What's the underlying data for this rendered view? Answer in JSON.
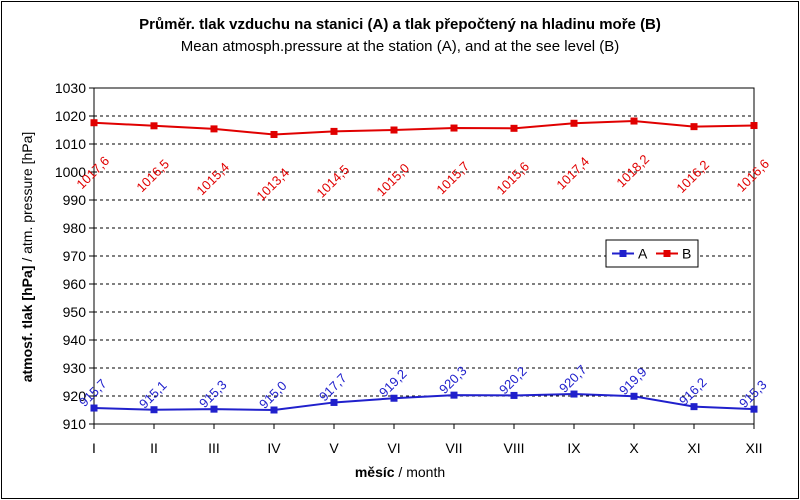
{
  "chart_data": {
    "type": "line",
    "title": "Průměr. tlak vzduchu na stanici (A) a tlak přepočtený na hladinu moře (B)",
    "subtitle": "Mean atmosph.pressure at the station (A), and at the see level (B)",
    "xlabel_bold": "měsíc",
    "xlabel_rest": " / month",
    "ylabel_bold": "atmosf. tlak [hPa]",
    "ylabel_rest": " / atm. pressure [hPa]",
    "categories": [
      "I",
      "II",
      "III",
      "IV",
      "V",
      "VI",
      "VII",
      "VIII",
      "IX",
      "X",
      "XI",
      "XII"
    ],
    "ylim": [
      910,
      1030
    ],
    "yticks": [
      910,
      920,
      930,
      940,
      950,
      960,
      970,
      980,
      990,
      1000,
      1010,
      1020,
      1030
    ],
    "grid": "horizontal dashed",
    "legend_position": "right-middle",
    "series": [
      {
        "name": "A",
        "color": "#2020cc",
        "values": [
          915.7,
          915.1,
          915.3,
          915.0,
          917.7,
          919.2,
          920.3,
          920.2,
          920.7,
          919.9,
          916.2,
          915.3
        ],
        "labels": [
          "915,7",
          "915,1",
          "915,3",
          "915,0",
          "917,7",
          "919,2",
          "920,3",
          "920,2",
          "920,7",
          "919,9",
          "916,2",
          "915,3"
        ]
      },
      {
        "name": "B",
        "color": "#e00000",
        "values": [
          1017.6,
          1016.5,
          1015.4,
          1013.4,
          1014.5,
          1015.0,
          1015.7,
          1015.6,
          1017.4,
          1018.2,
          1016.2,
          1016.6
        ],
        "labels": [
          "1017,6",
          "1016,5",
          "1015,4",
          "1013,4",
          "1014,5",
          "1015,0",
          "1015,7",
          "1015,6",
          "1017,4",
          "1018,2",
          "1016,2",
          "1016,6"
        ]
      }
    ]
  }
}
